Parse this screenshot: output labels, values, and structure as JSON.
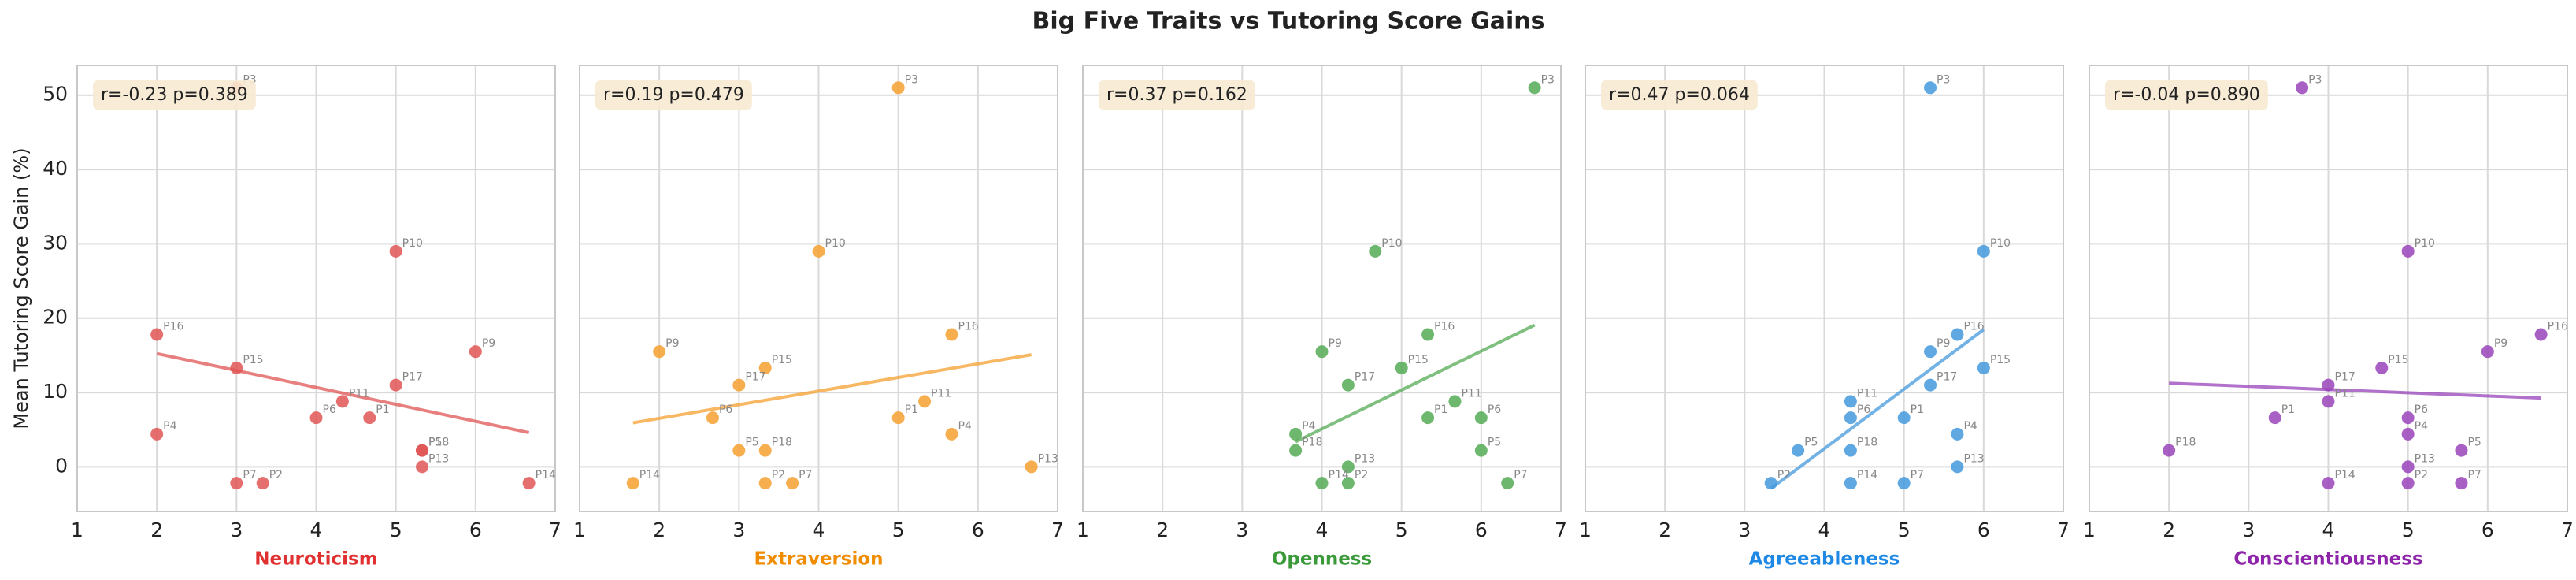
{
  "title": "Big Five Traits vs Tutoring Score Gains",
  "ylabel": "Mean Tutoring Score Gain (%)",
  "chart_data": [
    {
      "type": "scatter",
      "xlabel": "Neuroticism",
      "annotation": "r=-0.23 p=0.389",
      "color": "#e05555",
      "label_color": "#e03030",
      "labels": [
        "P3",
        "P10",
        "P16",
        "P9",
        "P15",
        "P17",
        "P11",
        "P6",
        "P1",
        "P4",
        "P5",
        "P18",
        "P13",
        "P7",
        "P2",
        "P14"
      ],
      "x": [
        3.0,
        5.0,
        2.0,
        6.0,
        3.0,
        5.0,
        4.33,
        4.0,
        4.67,
        2.0,
        5.33,
        5.33,
        5.33,
        3.0,
        3.33,
        6.67
      ],
      "values": [
        51,
        29,
        17.8,
        15.5,
        13.3,
        11,
        8.8,
        6.6,
        6.6,
        4.4,
        2.2,
        2.2,
        0,
        -2.2,
        -2.2,
        -2.2
      ],
      "xlim": [
        1,
        7
      ],
      "xticks": [
        1,
        2,
        3,
        4,
        5,
        6,
        7
      ],
      "ylim": [
        -6,
        54
      ],
      "yticks": [
        0,
        10,
        20,
        30,
        40,
        50
      ],
      "grid": true
    },
    {
      "type": "scatter",
      "xlabel": "Extraversion",
      "annotation": "r=0.19 p=0.479",
      "color": "#f5a030",
      "label_color": "#f08c00",
      "labels": [
        "P3",
        "P10",
        "P16",
        "P9",
        "P15",
        "P17",
        "P11",
        "P6",
        "P1",
        "P4",
        "P5",
        "P18",
        "P13",
        "P7",
        "P2",
        "P14"
      ],
      "x": [
        5.0,
        4.0,
        5.67,
        2.0,
        3.33,
        3.0,
        5.33,
        2.67,
        5.0,
        5.67,
        3.0,
        3.33,
        6.67,
        3.67,
        3.33,
        1.67
      ],
      "values": [
        51,
        29,
        17.8,
        15.5,
        13.3,
        11,
        8.8,
        6.6,
        6.6,
        4.4,
        2.2,
        2.2,
        0,
        -2.2,
        -2.2,
        -2.2
      ],
      "xlim": [
        1,
        7
      ],
      "xticks": [
        1,
        2,
        3,
        4,
        5,
        6,
        7
      ],
      "ylim": [
        -6,
        54
      ],
      "yticks": [
        0,
        10,
        20,
        30,
        40,
        50
      ],
      "grid": true
    },
    {
      "type": "scatter",
      "xlabel": "Openness",
      "annotation": "r=0.37 p=0.162",
      "color": "#55aa55",
      "label_color": "#3a9a3a",
      "labels": [
        "P3",
        "P10",
        "P16",
        "P9",
        "P15",
        "P17",
        "P11",
        "P6",
        "P1",
        "P4",
        "P5",
        "P18",
        "P13",
        "P7",
        "P2",
        "P14"
      ],
      "x": [
        6.67,
        4.67,
        5.33,
        4.0,
        5.0,
        4.33,
        5.67,
        6.0,
        5.33,
        3.67,
        6.0,
        3.67,
        4.33,
        6.33,
        4.33,
        4.0
      ],
      "values": [
        51,
        29,
        17.8,
        15.5,
        13.3,
        11,
        8.8,
        6.6,
        6.6,
        4.4,
        2.2,
        2.2,
        0,
        -2.2,
        -2.2,
        -2.2
      ],
      "xlim": [
        1,
        7
      ],
      "xticks": [
        1,
        2,
        3,
        4,
        5,
        6,
        7
      ],
      "ylim": [
        -6,
        54
      ],
      "yticks": [
        0,
        10,
        20,
        30,
        40,
        50
      ],
      "grid": true
    },
    {
      "type": "scatter",
      "xlabel": "Agreeableness",
      "annotation": "r=0.47 p=0.064",
      "color": "#4499dd",
      "label_color": "#1e88e5",
      "labels": [
        "P3",
        "P10",
        "P16",
        "P9",
        "P15",
        "P17",
        "P11",
        "P6",
        "P1",
        "P4",
        "P5",
        "P18",
        "P13",
        "P7",
        "P2",
        "P14"
      ],
      "x": [
        5.33,
        6.0,
        5.67,
        5.33,
        6.0,
        5.33,
        4.33,
        4.33,
        5.0,
        5.67,
        3.67,
        4.33,
        5.67,
        5.0,
        3.33,
        4.33
      ],
      "values": [
        51,
        29,
        17.8,
        15.5,
        13.3,
        11,
        8.8,
        6.6,
        6.6,
        4.4,
        2.2,
        2.2,
        0,
        -2.2,
        -2.2,
        -2.2
      ],
      "xlim": [
        1,
        7
      ],
      "xticks": [
        1,
        2,
        3,
        4,
        5,
        6,
        7
      ],
      "ylim": [
        -6,
        54
      ],
      "yticks": [
        0,
        10,
        20,
        30,
        40,
        50
      ],
      "grid": true
    },
    {
      "type": "scatter",
      "xlabel": "Conscientiousness",
      "annotation": "r=-0.04 p=0.890",
      "color": "#9944bb",
      "label_color": "#8e24aa",
      "labels": [
        "P3",
        "P10",
        "P16",
        "P9",
        "P15",
        "P17",
        "P11",
        "P6",
        "P1",
        "P4",
        "P5",
        "P18",
        "P13",
        "P7",
        "P2",
        "P14"
      ],
      "x": [
        3.67,
        5.0,
        6.67,
        6.0,
        4.67,
        4.0,
        4.0,
        5.0,
        3.33,
        5.0,
        5.67,
        2.0,
        5.0,
        5.67,
        5.0,
        4.0
      ],
      "values": [
        51,
        29,
        17.8,
        15.5,
        13.3,
        11,
        8.8,
        6.6,
        6.6,
        4.4,
        2.2,
        2.2,
        0,
        -2.2,
        -2.2,
        -2.2
      ],
      "xlim": [
        1,
        7
      ],
      "xticks": [
        1,
        2,
        3,
        4,
        5,
        6,
        7
      ],
      "ylim": [
        -6,
        54
      ],
      "yticks": [
        0,
        10,
        20,
        30,
        40,
        50
      ],
      "grid": true
    }
  ]
}
